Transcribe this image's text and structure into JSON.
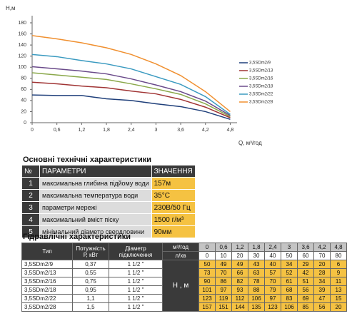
{
  "chart_data": {
    "type": "line",
    "y_label": "Н,м",
    "x_label": "Q, м³/год",
    "x": [
      0,
      0.6,
      1.2,
      1.8,
      2.4,
      3,
      3.6,
      4.2,
      4.8
    ],
    "xlim": [
      0,
      5
    ],
    "ylim": [
      0,
      180
    ],
    "xticks": [
      0,
      {
        "value": 0.6,
        "label": "0,6"
      },
      {
        "value": 1.2,
        "label": "1,2"
      },
      {
        "value": 1.8,
        "label": "1,8"
      },
      {
        "value": 2.4,
        "label": "2,4"
      },
      3,
      {
        "value": 3.6,
        "label": "3,6"
      },
      {
        "value": 4.2,
        "label": "4,2"
      },
      {
        "value": 4.8,
        "label": "4,8"
      }
    ],
    "yticks": [
      0,
      20,
      40,
      60,
      80,
      100,
      120,
      140,
      160,
      180
    ],
    "grid": false,
    "legend": "right",
    "series": [
      {
        "name": "3,5SDm2/9",
        "color": "#1f3f7a",
        "values": [
          50,
          49,
          49,
          43,
          40,
          34,
          29,
          20,
          6
        ]
      },
      {
        "name": "3,5SDm2/13",
        "color": "#a03434",
        "values": [
          73,
          70,
          66,
          63,
          57,
          52,
          42,
          28,
          9
        ]
      },
      {
        "name": "3,5SDm2/16",
        "color": "#8aa84a",
        "values": [
          90,
          86,
          82,
          78,
          70,
          61,
          51,
          34,
          11
        ]
      },
      {
        "name": "3,5SDm2/18",
        "color": "#6a4a8a",
        "values": [
          101,
          97,
          93,
          88,
          79,
          68,
          56,
          39,
          13
        ]
      },
      {
        "name": "3,5SDm2/22",
        "color": "#3a9ac0",
        "values": [
          123,
          119,
          112,
          106,
          97,
          83,
          69,
          47,
          15
        ]
      },
      {
        "name": "3,5SDm2/28",
        "color": "#f09030",
        "values": [
          157,
          151,
          144,
          135,
          123,
          106,
          85,
          56,
          20
        ]
      }
    ]
  },
  "spec_table": {
    "title": "Основні технічні характеристики",
    "header": [
      "№",
      "ПАРАМЕТРИ",
      "ЗНАЧЕННЯ"
    ],
    "rows": [
      [
        "1",
        "максимальна глибина підйому води",
        "157м"
      ],
      [
        "2",
        "максимальна температура води",
        "35°С"
      ],
      [
        "3",
        "параметри мережі",
        "230В/50 Гц"
      ],
      [
        "4",
        "максимальний вміст піску",
        "1500 г/м³"
      ],
      [
        "5",
        "мінімальний діаметр свердловини",
        "90мм"
      ]
    ]
  },
  "hydraulic_table": {
    "title": "Гідравлічні характеристики",
    "header": {
      "type": "Тип",
      "power": "Потужність Р, кВт",
      "diameter": "Діаметр підключення",
      "flow_m3h": "м³/год",
      "flow_lpm": "л/хв",
      "head": "Н , м"
    },
    "flow_lpm": [
      "0",
      "10",
      "20",
      "30",
      "40",
      "50",
      "60",
      "70",
      "80"
    ],
    "power": [
      "0,37",
      "0,55",
      "0,75",
      "0,95",
      "1,1",
      "1,5"
    ],
    "diameter": [
      "1 1/2 \"",
      "1 1/2 \"",
      "1 1/2 \"",
      "1 1/2 \"",
      "1 1/2 \"",
      "1 1/2 \""
    ]
  }
}
